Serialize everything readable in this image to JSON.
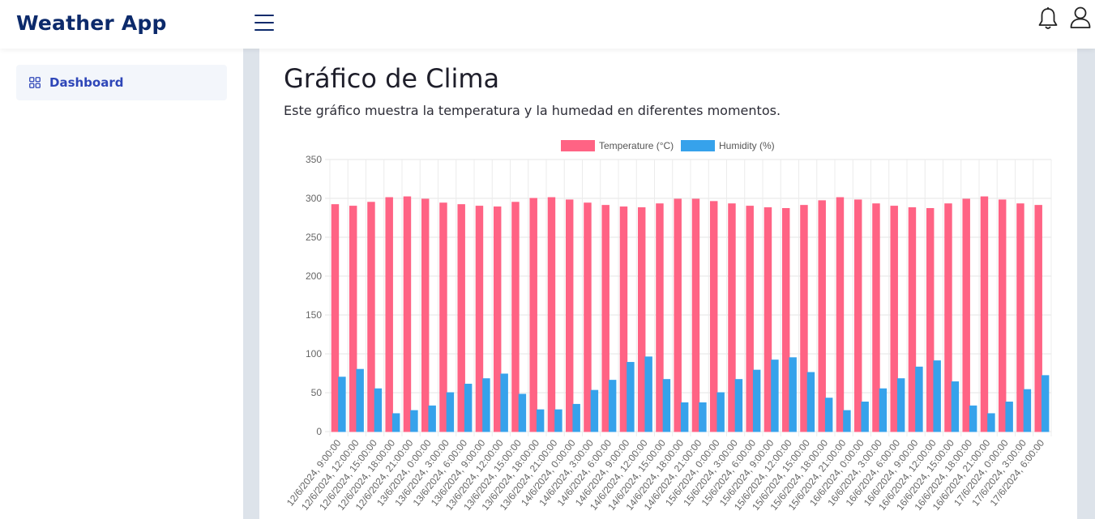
{
  "app": {
    "title": "Weather App"
  },
  "sidebar": {
    "items": [
      {
        "label": "Dashboard",
        "icon": "grid-icon"
      }
    ]
  },
  "header": {
    "icons": [
      "menu-icon",
      "bell-icon",
      "user-icon"
    ]
  },
  "main": {
    "title": "Gráfico de Clima",
    "subtitle": "Este gráfico muestra la temperatura y la humedad en diferentes momentos."
  },
  "colors": {
    "temperature": "#ff6384",
    "humidity": "#36a2eb",
    "brand": "#0c2a6b",
    "nav_active": "#2e46b8"
  },
  "chart_data": {
    "type": "bar",
    "ylim": [
      0,
      350
    ],
    "yticks": [
      0,
      50,
      100,
      150,
      200,
      250,
      300,
      350
    ],
    "grid": true,
    "legend_position": "top",
    "categories": [
      "12/6/2024, 9:00:00",
      "12/6/2024, 12:00:00",
      "12/6/2024, 15:00:00",
      "12/6/2024, 18:00:00",
      "12/6/2024, 21:00:00",
      "13/6/2024, 0:00:00",
      "13/6/2024, 3:00:00",
      "13/6/2024, 6:00:00",
      "13/6/2024, 9:00:00",
      "13/6/2024, 12:00:00",
      "13/6/2024, 15:00:00",
      "13/6/2024, 18:00:00",
      "13/6/2024, 21:00:00",
      "14/6/2024, 0:00:00",
      "14/6/2024, 3:00:00",
      "14/6/2024, 6:00:00",
      "14/6/2024, 9:00:00",
      "14/6/2024, 12:00:00",
      "14/6/2024, 15:00:00",
      "14/6/2024, 18:00:00",
      "14/6/2024, 21:00:00",
      "15/6/2024, 0:00:00",
      "15/6/2024, 3:00:00",
      "15/6/2024, 6:00:00",
      "15/6/2024, 9:00:00",
      "15/6/2024, 12:00:00",
      "15/6/2024, 15:00:00",
      "15/6/2024, 18:00:00",
      "15/6/2024, 21:00:00",
      "16/6/2024, 0:00:00",
      "16/6/2024, 3:00:00",
      "16/6/2024, 6:00:00",
      "16/6/2024, 9:00:00",
      "16/6/2024, 12:00:00",
      "16/6/2024, 15:00:00",
      "16/6/2024, 18:00:00",
      "16/6/2024, 21:00:00",
      "17/6/2024, 0:00:00",
      "17/6/2024, 3:00:00",
      "17/6/2024, 6:00:00"
    ],
    "series": [
      {
        "name": "Temperature (°C)",
        "color": "#ff6384",
        "values": [
          292,
          290,
          295,
          301,
          302,
          299,
          294,
          292,
          290,
          289,
          295,
          300,
          301,
          298,
          294,
          291,
          289,
          288,
          293,
          299,
          299,
          296,
          293,
          290,
          288,
          287,
          291,
          297,
          301,
          298,
          293,
          290,
          288,
          287,
          293,
          299,
          302,
          298,
          293,
          291
        ]
      },
      {
        "name": "Humidity (%)",
        "color": "#36a2eb",
        "values": [
          70,
          80,
          55,
          23,
          27,
          33,
          50,
          61,
          68,
          74,
          48,
          28,
          28,
          35,
          53,
          66,
          89,
          96,
          67,
          37,
          37,
          50,
          67,
          79,
          92,
          95,
          76,
          43,
          27,
          38,
          55,
          68,
          83,
          91,
          64,
          33,
          23,
          38,
          54,
          72
        ]
      }
    ]
  }
}
